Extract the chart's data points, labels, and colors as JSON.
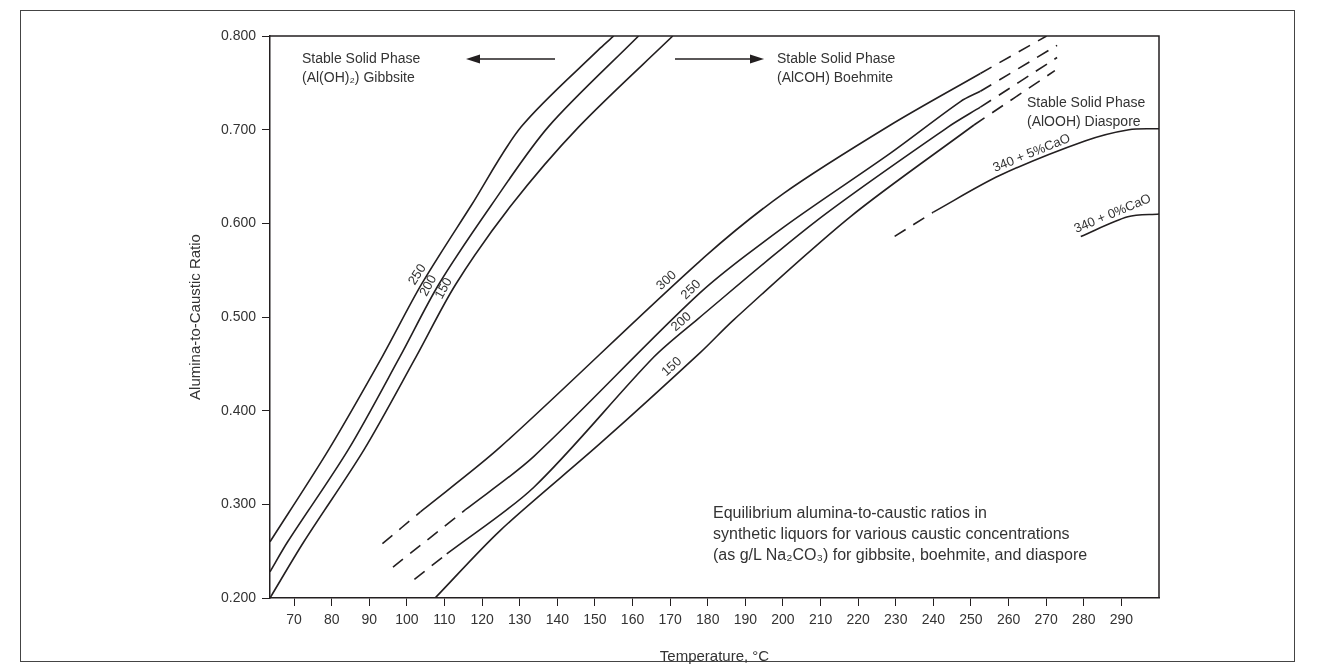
{
  "chart_data": {
    "type": "line",
    "xlabel": "Temperature, °C",
    "ylabel": "Alumina-to-Caustic Ratio",
    "xlim": [
      63.6,
      300
    ],
    "xticks": [
      70,
      80,
      90,
      100,
      110,
      120,
      130,
      140,
      150,
      160,
      170,
      180,
      190,
      200,
      210,
      220,
      230,
      240,
      250,
      260,
      270,
      280,
      290
    ],
    "ylim": [
      0.2,
      0.8
    ],
    "yticks": [
      {
        "value": 0.2,
        "label": "0.200"
      },
      {
        "value": 0.3,
        "label": "0.300"
      },
      {
        "value": 0.4,
        "label": "0.400"
      },
      {
        "value": 0.5,
        "label": "0.500"
      },
      {
        "value": 0.6,
        "label": "0.600"
      },
      {
        "value": 0.7,
        "label": "0.700"
      },
      {
        "value": 0.8,
        "label": "0.800"
      }
    ],
    "grid": false,
    "legend": false,
    "marker": "none",
    "annotations": [
      "Stable Solid Phase\n(Al(OH)₂) Gibbsite",
      "Stable Solid Phase\n(AlCOH) Boehmite",
      "Stable Solid Phase\n(AlOOH) Diaspore",
      "Equilibrium alumina-to-caustic ratios in\nsynthetic liquors for various caustic concentrations\n(as g/L Na₂CO₃) for gibbsite, boehmite, and diaspore"
    ],
    "series": [
      {
        "name": "250",
        "color": "#231f20",
        "line_style": "solid",
        "x": [
          63.6,
          79.3,
          93.5,
          103.9,
          117.1,
          130.4,
          151.4,
          155.0
        ],
        "values": [
          0.26,
          0.359,
          0.458,
          0.535,
          0.619,
          0.703,
          0.787,
          0.8
        ]
      },
      {
        "name": "200",
        "color": "#231f20",
        "line_style": "solid",
        "x": [
          63.6,
          68.3,
          84.5,
          98.2,
          108.5,
          122.4,
          137.6,
          161.6
        ],
        "values": [
          0.228,
          0.26,
          0.359,
          0.458,
          0.535,
          0.619,
          0.703,
          0.8
        ]
      },
      {
        "name": "150",
        "color": "#231f20",
        "line_style": "solid",
        "x": [
          63.6,
          72.6,
          88.7,
          102.5,
          113.0,
          127.7,
          145.7,
          170.7
        ],
        "values": [
          0.2,
          0.26,
          0.359,
          0.458,
          0.535,
          0.619,
          0.703,
          0.8
        ]
      },
      {
        "color": "#231f20",
        "line_style": "dashed",
        "x": [
          93.5,
          103.6
        ],
        "values": [
          0.258,
          0.292
        ]
      },
      {
        "name": "300",
        "color": "#231f20",
        "line_style": "solid",
        "x": [
          103.6,
          124.8,
          178.0,
          200.2,
          228.6,
          252.5
        ],
        "values": [
          0.292,
          0.361,
          0.56,
          0.632,
          0.705,
          0.76
        ]
      },
      {
        "color": "#231f20",
        "line_style": "dashed",
        "x": [
          252.5,
          270.1
        ],
        "values": [
          0.76,
          0.8
        ]
      },
      {
        "color": "#231f20",
        "line_style": "dashed",
        "x": [
          96.3,
          115.5
        ],
        "values": [
          0.233,
          0.294
        ]
      },
      {
        "name": "250",
        "color": "#231f20",
        "line_style": "solid",
        "x": [
          115.5,
          133.7,
          178.0,
          200.2,
          228.6,
          247.2,
          252.5
        ],
        "values": [
          0.294,
          0.351,
          0.526,
          0.596,
          0.675,
          0.73,
          0.741
        ]
      },
      {
        "color": "#231f20",
        "line_style": "dashed",
        "x": [
          252.5,
          272.9
        ],
        "values": [
          0.741,
          0.79
        ]
      },
      {
        "color": "#231f20",
        "line_style": "dashed",
        "x": [
          102.0,
          110.6
        ],
        "values": [
          0.22,
          0.247
        ]
      },
      {
        "name": "200",
        "color": "#231f20",
        "line_style": "solid",
        "x": [
          110.6,
          133.7,
          165.6,
          177.1,
          209.0,
          243.6,
          252.5
        ],
        "values": [
          0.247,
          0.318,
          0.457,
          0.497,
          0.603,
          0.702,
          0.724
        ]
      },
      {
        "color": "#231f20",
        "line_style": "dashed",
        "x": [
          252.5,
          272.9
        ],
        "values": [
          0.724,
          0.777
        ]
      },
      {
        "name": "150",
        "color": "#231f20",
        "line_style": "solid",
        "x": [
          107.5,
          124.8,
          151.4,
          178.0,
          186.9,
          217.9,
          250.8
        ],
        "values": [
          0.2,
          0.272,
          0.365,
          0.462,
          0.497,
          0.607,
          0.705
        ]
      },
      {
        "color": "#231f20",
        "line_style": "dashed",
        "x": [
          250.8,
          272.3
        ],
        "values": [
          0.705,
          0.763
        ]
      },
      {
        "color": "#231f20",
        "line_style": "dashed",
        "x": [
          229.7,
          240.0
        ],
        "values": [
          0.586,
          0.612
        ]
      },
      {
        "name": "340 + 5%CaO",
        "color": "#231f20",
        "line_style": "solid",
        "x": [
          240.0,
          257.6,
          280.3,
          292.0,
          300
        ],
        "values": [
          0.612,
          0.651,
          0.688,
          0.7,
          0.701
        ]
      },
      {
        "name": "340 + 0%CaO",
        "color": "#231f20",
        "line_style": "solid",
        "x": [
          279.2,
          291.7,
          300
        ],
        "values": [
          0.586,
          0.607,
          0.61
        ]
      }
    ]
  }
}
